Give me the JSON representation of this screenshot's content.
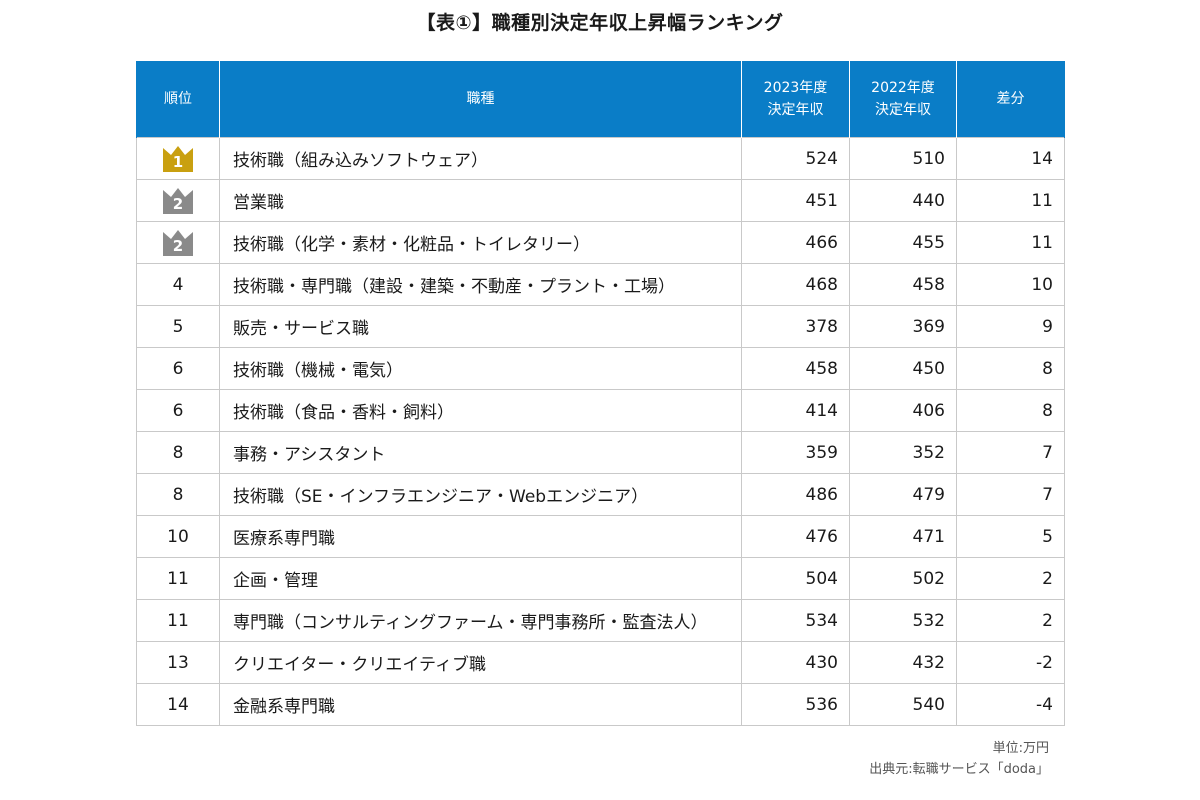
{
  "title": "【表①】職種別決定年収上昇幅ランキング",
  "colors": {
    "header_bg": "#0a7dc7",
    "header_text": "#ffffff",
    "gold_crown": "#c9a010",
    "silver_crown": "#8a8a8a",
    "border": "#c9c9c9"
  },
  "table": {
    "headers": {
      "rank": "順位",
      "job": "職種",
      "y2023_line1": "2023年度",
      "y2023_line2": "決定年収",
      "y2022_line1": "2022年度",
      "y2022_line2": "決定年収",
      "diff": "差分"
    },
    "rows": [
      {
        "rank": "1",
        "crown": "gold",
        "job": "技術職（組み込みソフトウェア）",
        "y2023": "524",
        "y2022": "510",
        "diff": "14"
      },
      {
        "rank": "2",
        "crown": "silver",
        "job": "営業職",
        "y2023": "451",
        "y2022": "440",
        "diff": "11"
      },
      {
        "rank": "2",
        "crown": "silver",
        "job": "技術職（化学・素材・化粧品・トイレタリー）",
        "y2023": "466",
        "y2022": "455",
        "diff": "11"
      },
      {
        "rank": "4",
        "crown": "",
        "job": "技術職・専門職（建設・建築・不動産・プラント・工場）",
        "y2023": "468",
        "y2022": "458",
        "diff": "10"
      },
      {
        "rank": "5",
        "crown": "",
        "job": "販売・サービス職",
        "y2023": "378",
        "y2022": "369",
        "diff": "9"
      },
      {
        "rank": "6",
        "crown": "",
        "job": "技術職（機械・電気）",
        "y2023": "458",
        "y2022": "450",
        "diff": "8"
      },
      {
        "rank": "6",
        "crown": "",
        "job": "技術職（食品・香料・飼料）",
        "y2023": "414",
        "y2022": "406",
        "diff": "8"
      },
      {
        "rank": "8",
        "crown": "",
        "job": "事務・アシスタント",
        "y2023": "359",
        "y2022": "352",
        "diff": "7"
      },
      {
        "rank": "8",
        "crown": "",
        "job": "技術職（SE・インフラエンジニア・Webエンジニア）",
        "y2023": "486",
        "y2022": "479",
        "diff": "7"
      },
      {
        "rank": "10",
        "crown": "",
        "job": "医療系専門職",
        "y2023": "476",
        "y2022": "471",
        "diff": "5"
      },
      {
        "rank": "11",
        "crown": "",
        "job": "企画・管理",
        "y2023": "504",
        "y2022": "502",
        "diff": "2"
      },
      {
        "rank": "11",
        "crown": "",
        "job": "専門職（コンサルティングファーム・専門事務所・監査法人）",
        "y2023": "534",
        "y2022": "532",
        "diff": "2"
      },
      {
        "rank": "13",
        "crown": "",
        "job": "クリエイター・クリエイティブ職",
        "y2023": "430",
        "y2022": "432",
        "diff": "-2"
      },
      {
        "rank": "14",
        "crown": "",
        "job": "金融系専門職",
        "y2023": "536",
        "y2022": "540",
        "diff": "-4"
      }
    ]
  },
  "footer": {
    "unit": "単位:万円",
    "source": "出典元:転職サービス「doda」"
  }
}
